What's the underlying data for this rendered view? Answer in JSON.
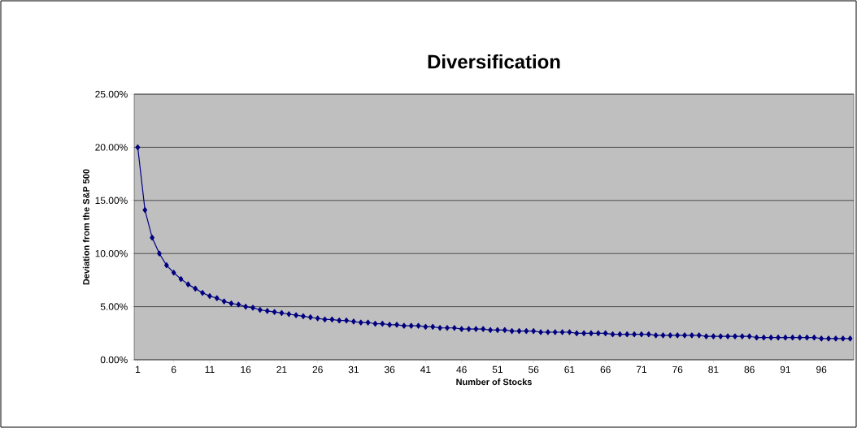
{
  "chart_data": {
    "type": "line",
    "title": "Diversification",
    "xlabel": "Number of Stocks",
    "ylabel": "Deviation from the S&P 500",
    "x": [
      1,
      2,
      3,
      4,
      5,
      6,
      7,
      8,
      9,
      10,
      11,
      12,
      13,
      14,
      15,
      16,
      17,
      18,
      19,
      20,
      21,
      22,
      23,
      24,
      25,
      26,
      27,
      28,
      29,
      30,
      31,
      32,
      33,
      34,
      35,
      36,
      37,
      38,
      39,
      40,
      41,
      42,
      43,
      44,
      45,
      46,
      47,
      48,
      49,
      50,
      51,
      52,
      53,
      54,
      55,
      56,
      57,
      58,
      59,
      60,
      61,
      62,
      63,
      64,
      65,
      66,
      67,
      68,
      69,
      70,
      71,
      72,
      73,
      74,
      75,
      76,
      77,
      78,
      79,
      80,
      81,
      82,
      83,
      84,
      85,
      86,
      87,
      88,
      89,
      90,
      91,
      92,
      93,
      94,
      95,
      96,
      97,
      98,
      99,
      100
    ],
    "values": [
      20.0,
      14.1,
      11.5,
      10.0,
      8.9,
      8.2,
      7.6,
      7.1,
      6.7,
      6.3,
      6.0,
      5.8,
      5.5,
      5.3,
      5.2,
      5.0,
      4.9,
      4.7,
      4.6,
      4.5,
      4.4,
      4.3,
      4.2,
      4.1,
      4.0,
      3.9,
      3.8,
      3.8,
      3.7,
      3.7,
      3.6,
      3.5,
      3.5,
      3.4,
      3.4,
      3.3,
      3.3,
      3.2,
      3.2,
      3.2,
      3.1,
      3.1,
      3.0,
      3.0,
      3.0,
      2.9,
      2.9,
      2.9,
      2.9,
      2.8,
      2.8,
      2.8,
      2.7,
      2.7,
      2.7,
      2.7,
      2.6,
      2.6,
      2.6,
      2.6,
      2.6,
      2.5,
      2.5,
      2.5,
      2.5,
      2.5,
      2.4,
      2.4,
      2.4,
      2.4,
      2.4,
      2.4,
      2.3,
      2.3,
      2.3,
      2.3,
      2.3,
      2.3,
      2.3,
      2.2,
      2.2,
      2.2,
      2.2,
      2.2,
      2.2,
      2.2,
      2.1,
      2.1,
      2.1,
      2.1,
      2.1,
      2.1,
      2.1,
      2.1,
      2.1,
      2.0,
      2.0,
      2.0,
      2.0,
      2.0
    ],
    "color": "#000080",
    "marker": "diamond",
    "line_style": "solid",
    "grid": "y",
    "xlim": [
      0.5,
      100.5
    ],
    "xticks": [
      1,
      6,
      11,
      16,
      21,
      26,
      31,
      36,
      41,
      46,
      51,
      56,
      61,
      66,
      71,
      76,
      81,
      86,
      91,
      96
    ],
    "ylim": [
      0,
      25
    ],
    "yticks": [
      {
        "value": 0,
        "label": "0.00%"
      },
      {
        "value": 5,
        "label": "5.00%"
      },
      {
        "value": 10,
        "label": "10.00%"
      },
      {
        "value": 15,
        "label": "15.00%"
      },
      {
        "value": 20,
        "label": "20.00%"
      },
      {
        "value": 25,
        "label": "25.00%"
      }
    ]
  }
}
